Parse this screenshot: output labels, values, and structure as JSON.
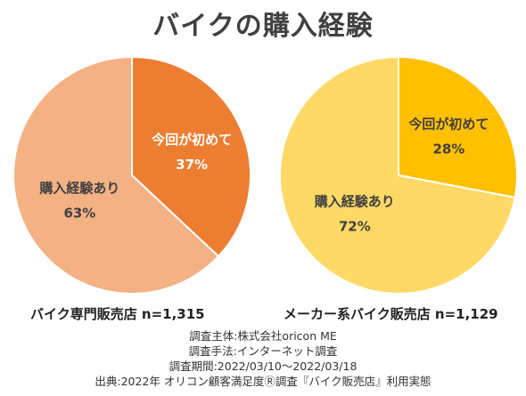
{
  "page": {
    "title": "バイクの購入経験"
  },
  "chart_data": [
    {
      "type": "pie",
      "caption": "バイク専門販売店 n=1,315",
      "slices": [
        {
          "label": "今回が初めて",
          "value": 37,
          "display": "37%",
          "color": "#ED7D31",
          "text_color": "#ffffff"
        },
        {
          "label": "購入経験あり",
          "value": 63,
          "display": "63%",
          "color": "#F4B183",
          "text_color": "#404040"
        }
      ]
    },
    {
      "type": "pie",
      "caption": "メーカー系バイク販売店 n=1,129",
      "slices": [
        {
          "label": "今回が初めて",
          "value": 28,
          "display": "28%",
          "color": "#FFC000",
          "text_color": "#404040"
        },
        {
          "label": "購入経験あり",
          "value": 72,
          "display": "72%",
          "color": "#FFD966",
          "text_color": "#404040"
        }
      ]
    }
  ],
  "notes": [
    "調査主体:株式会社oricon ME",
    "調査手法:インターネット調査",
    "調査期間:2022/03/10～2022/03/18",
    "出典:2022年 オリコン顧客満足度Ⓡ調査『バイク販売店』利用実態"
  ]
}
